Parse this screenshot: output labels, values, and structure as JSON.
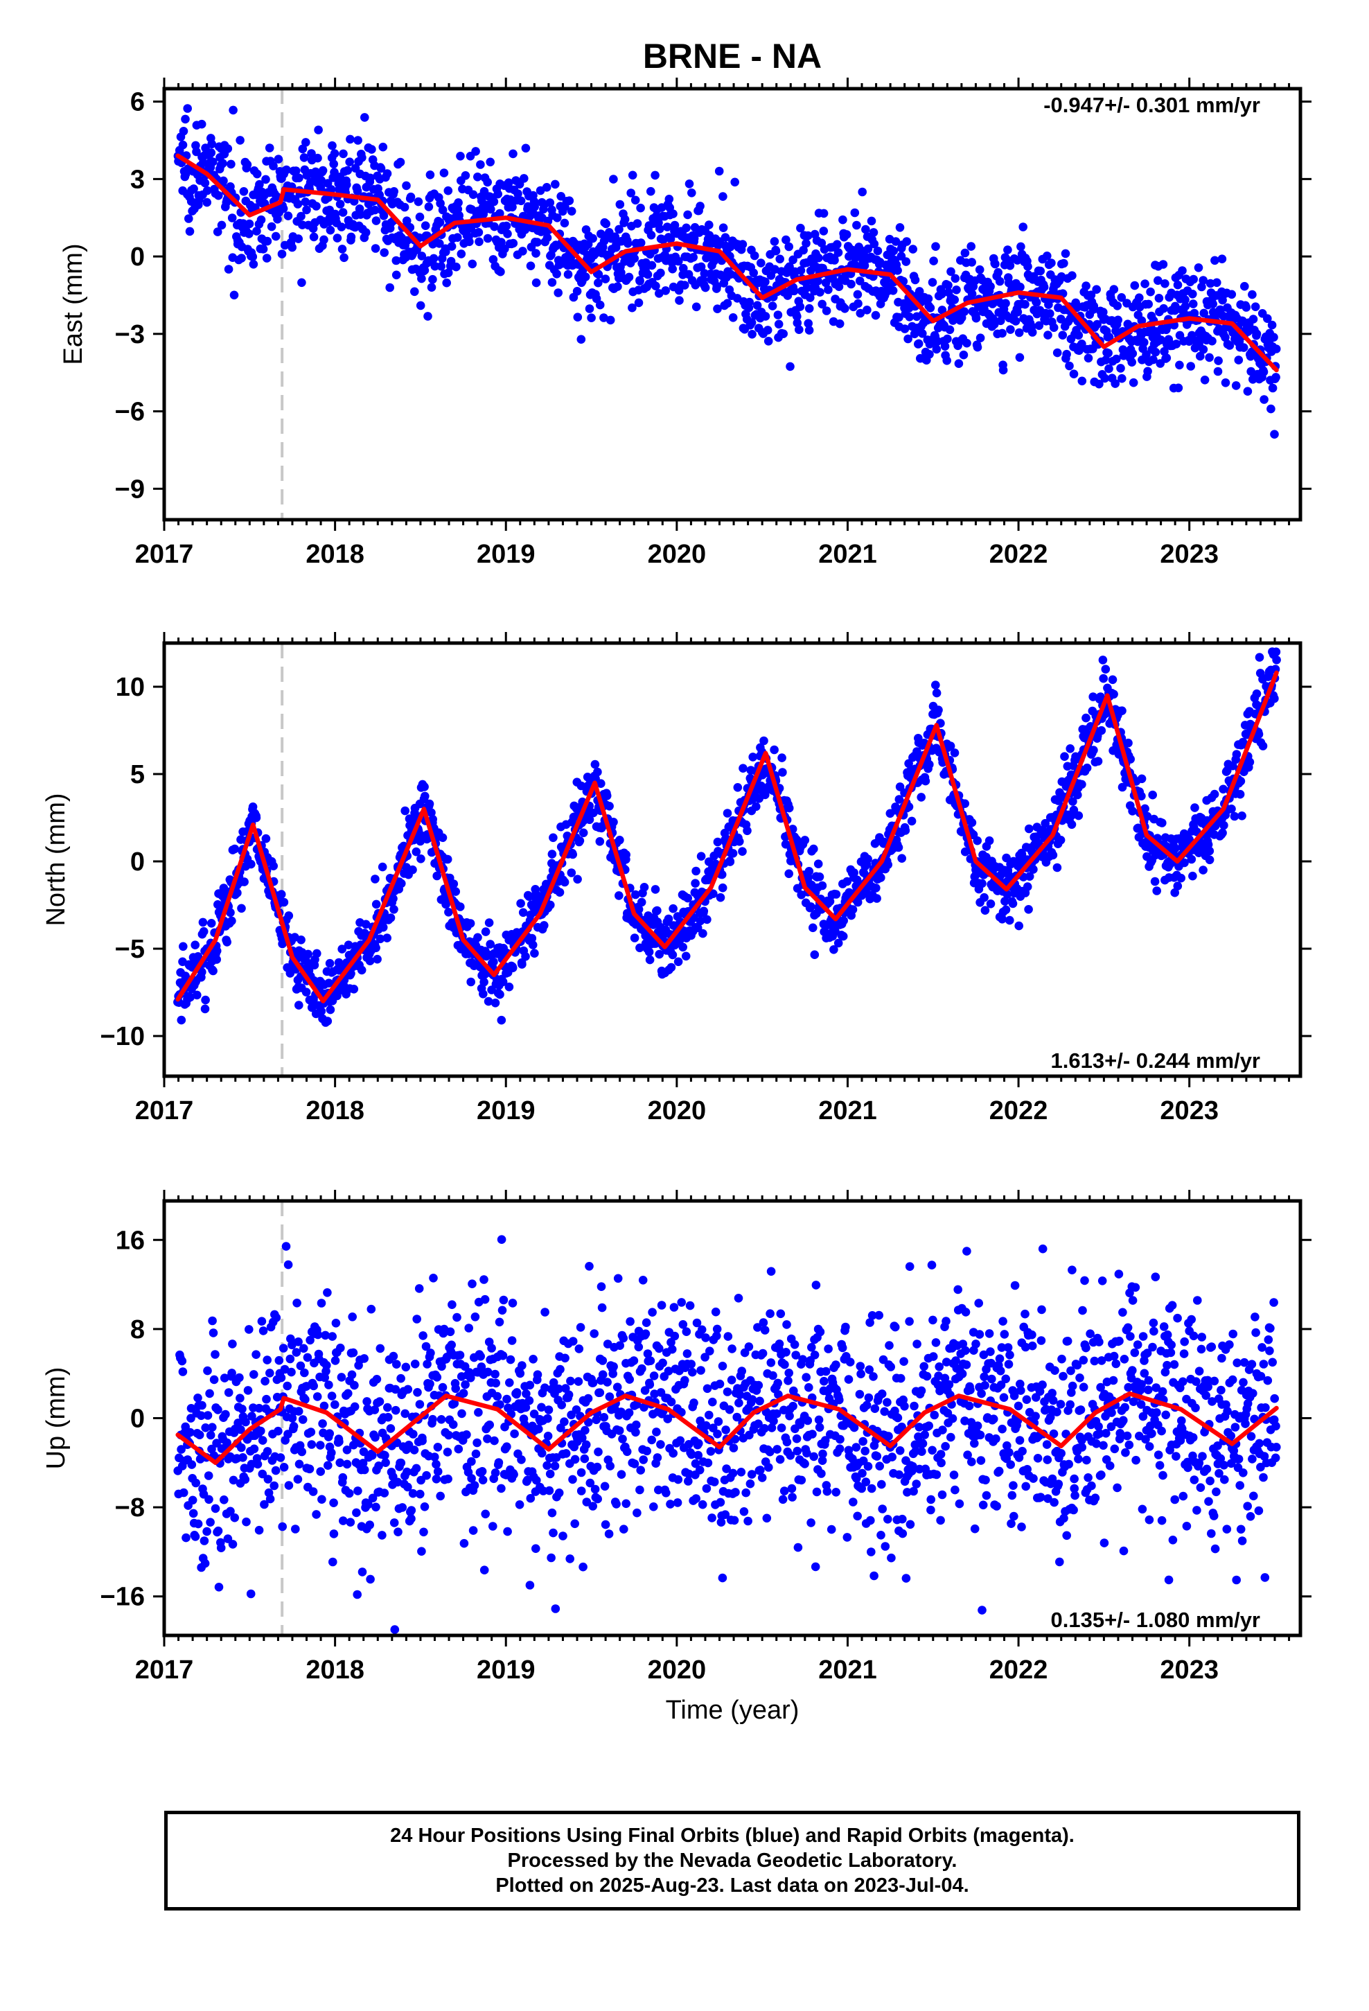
{
  "title": "BRNE - NA",
  "chart_data": [
    {
      "type": "scatter",
      "ylabel": "East (mm)",
      "xlabel": "",
      "xlim": [
        2017.0,
        2023.65
      ],
      "ylim": [
        -10.2,
        6.5
      ],
      "xticks": [
        2017,
        2018,
        2019,
        2020,
        2021,
        2022,
        2023
      ],
      "yticks": [
        6,
        3,
        0,
        -3,
        -6,
        -9
      ],
      "ytick_labels": [
        "6",
        "3",
        "0",
        "−3",
        "−6",
        "−9"
      ],
      "rate_label": "-0.947+/- 0.301 mm/yr",
      "rate_position": "top-right",
      "data_span": [
        2017.08,
        2023.51
      ],
      "break_line": 2017.69,
      "series": [
        {
          "kind": "daily-positions",
          "color": "#0000ff",
          "scatter_sd": 1.05,
          "point_count": 1900
        },
        {
          "kind": "model-fit",
          "color": "#ff0000",
          "x": [
            2017.08,
            2017.25,
            2017.5,
            2017.68,
            2017.7,
            2018.0,
            2018.25,
            2018.5,
            2018.7,
            2019.0,
            2019.25,
            2019.5,
            2019.7,
            2020.0,
            2020.25,
            2020.5,
            2020.7,
            2021.0,
            2021.25,
            2021.5,
            2021.7,
            2022.0,
            2022.25,
            2022.5,
            2022.7,
            2023.0,
            2023.25,
            2023.51
          ],
          "y": [
            3.9,
            3.2,
            1.6,
            2.1,
            2.6,
            2.4,
            2.2,
            0.4,
            1.3,
            1.5,
            1.2,
            -0.6,
            0.2,
            0.5,
            0.2,
            -1.6,
            -0.9,
            -0.5,
            -0.7,
            -2.5,
            -1.8,
            -1.4,
            -1.6,
            -3.5,
            -2.7,
            -2.4,
            -2.6,
            -4.4
          ]
        }
      ]
    },
    {
      "type": "scatter",
      "ylabel": "North (mm)",
      "xlabel": "",
      "xlim": [
        2017.0,
        2023.65
      ],
      "ylim": [
        -12.3,
        12.5
      ],
      "xticks": [
        2017,
        2018,
        2019,
        2020,
        2021,
        2022,
        2023
      ],
      "yticks": [
        10,
        5,
        0,
        -5,
        -10
      ],
      "ytick_labels": [
        "10",
        "5",
        "0",
        "−5",
        "−10"
      ],
      "rate_label": "1.613+/- 0.244 mm/yr",
      "rate_position": "bottom-right",
      "data_span": [
        2017.08,
        2023.51
      ],
      "break_line": 2017.69,
      "series": [
        {
          "kind": "daily-positions",
          "color": "#0000ff",
          "scatter_sd": 1.0,
          "point_count": 1900
        },
        {
          "kind": "model-fit",
          "color": "#ff0000",
          "x": [
            2017.08,
            2017.3,
            2017.52,
            2017.75,
            2017.93,
            2018.2,
            2018.52,
            2018.75,
            2018.93,
            2019.2,
            2019.52,
            2019.75,
            2019.93,
            2020.2,
            2020.52,
            2020.75,
            2020.93,
            2021.2,
            2021.52,
            2021.75,
            2021.93,
            2022.2,
            2022.52,
            2022.75,
            2022.93,
            2023.2,
            2023.51
          ],
          "y": [
            -7.9,
            -4.5,
            2.1,
            -5.5,
            -8.0,
            -4.5,
            3.0,
            -4.5,
            -6.5,
            -3.0,
            4.5,
            -3.0,
            -4.9,
            -1.5,
            6.2,
            -1.5,
            -3.3,
            0.0,
            7.8,
            0.0,
            -1.6,
            1.5,
            9.5,
            1.5,
            0.0,
            3.0,
            10.8
          ]
        }
      ]
    },
    {
      "type": "scatter",
      "ylabel": "Up (mm)",
      "xlabel": "Time (year)",
      "xlim": [
        2017.0,
        2023.65
      ],
      "ylim": [
        -19.5,
        19.5
      ],
      "xticks": [
        2017,
        2018,
        2019,
        2020,
        2021,
        2022,
        2023
      ],
      "yticks": [
        16,
        8,
        0,
        -8,
        -16
      ],
      "ytick_labels": [
        "16",
        "8",
        "0",
        "−8",
        "−16"
      ],
      "rate_label": "0.135+/- 1.080 mm/yr",
      "rate_position": "bottom-right",
      "data_span": [
        2017.08,
        2023.51
      ],
      "break_line": 2017.69,
      "series": [
        {
          "kind": "daily-positions",
          "color": "#0000ff",
          "scatter_sd": 5.2,
          "point_count": 1900
        },
        {
          "kind": "model-fit",
          "color": "#ff0000",
          "x": [
            2017.08,
            2017.3,
            2017.5,
            2017.68,
            2017.7,
            2017.95,
            2018.25,
            2018.45,
            2018.65,
            2018.95,
            2019.25,
            2019.5,
            2019.7,
            2019.95,
            2020.25,
            2020.45,
            2020.65,
            2020.95,
            2021.25,
            2021.45,
            2021.65,
            2021.95,
            2022.25,
            2022.45,
            2022.65,
            2022.95,
            2023.25,
            2023.51
          ],
          "y": [
            -1.5,
            -4.0,
            -1.0,
            0.8,
            1.8,
            0.5,
            -3.0,
            -0.5,
            2.0,
            0.8,
            -2.8,
            0.5,
            2.0,
            0.8,
            -2.6,
            0.5,
            2.0,
            0.8,
            -2.5,
            0.5,
            2.0,
            0.8,
            -2.5,
            0.5,
            2.2,
            0.8,
            -2.3,
            0.9
          ]
        }
      ]
    }
  ],
  "footer": {
    "line1": "24 Hour Positions Using Final Orbits (blue) and Rapid Orbits (magenta).",
    "line2": "Processed by the Nevada Geodetic Laboratory.",
    "line3": "Plotted on 2025-Aug-23. Last data on 2023-Jul-04."
  }
}
